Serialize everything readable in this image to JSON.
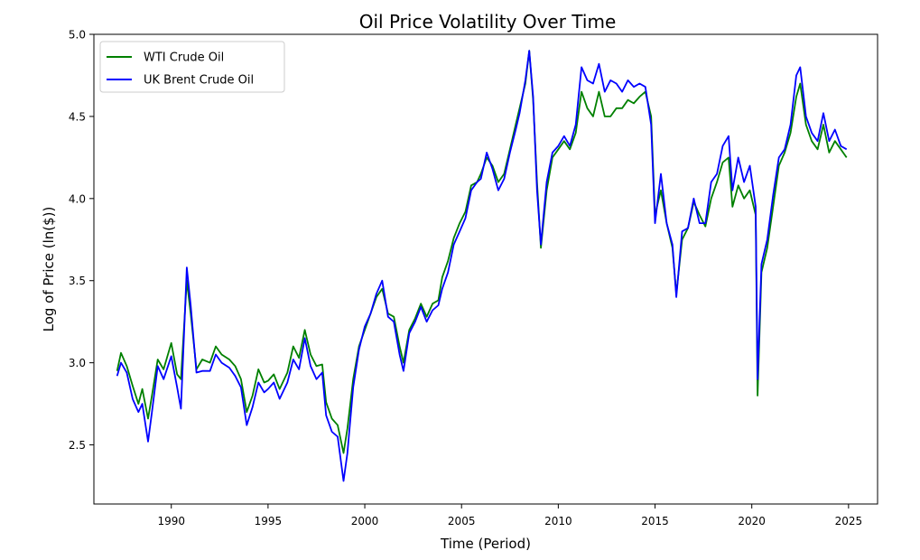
{
  "chart_data": {
    "type": "line",
    "title": "Oil Price Volatility Over Time",
    "xlabel": "Time (Period)",
    "ylabel": "Log of Price (ln($))",
    "xlim": [
      1986.0,
      2026.5
    ],
    "ylim": [
      2.14,
      5.0
    ],
    "x_ticks": [
      1990,
      1995,
      2000,
      2005,
      2010,
      2015,
      2020,
      2025
    ],
    "y_ticks": [
      2.5,
      3.0,
      3.5,
      4.0,
      4.5,
      5.0
    ],
    "x_tick_labels": [
      "1990",
      "1995",
      "2000",
      "2005",
      "2010",
      "2015",
      "2020",
      "2025"
    ],
    "y_tick_labels": [
      "2.5",
      "3.0",
      "3.5",
      "4.0",
      "4.5",
      "5.0"
    ],
    "grid": false,
    "legend_position": "top-left",
    "series": [
      {
        "name": "WTI Crude Oil",
        "color": "#008000",
        "points": [
          [
            1987.2,
            2.95
          ],
          [
            1987.4,
            3.06
          ],
          [
            1987.7,
            2.98
          ],
          [
            1988.0,
            2.86
          ],
          [
            1988.3,
            2.75
          ],
          [
            1988.5,
            2.84
          ],
          [
            1988.8,
            2.66
          ],
          [
            1989.0,
            2.8
          ],
          [
            1989.3,
            3.02
          ],
          [
            1989.6,
            2.96
          ],
          [
            1990.0,
            3.12
          ],
          [
            1990.3,
            2.93
          ],
          [
            1990.5,
            2.9
          ],
          [
            1990.8,
            3.5
          ],
          [
            1991.0,
            3.3
          ],
          [
            1991.3,
            2.96
          ],
          [
            1991.6,
            3.02
          ],
          [
            1992.0,
            3.0
          ],
          [
            1992.3,
            3.1
          ],
          [
            1992.6,
            3.05
          ],
          [
            1993.0,
            3.02
          ],
          [
            1993.3,
            2.98
          ],
          [
            1993.6,
            2.9
          ],
          [
            1993.9,
            2.7
          ],
          [
            1994.2,
            2.8
          ],
          [
            1994.5,
            2.96
          ],
          [
            1994.8,
            2.88
          ],
          [
            1995.0,
            2.89
          ],
          [
            1995.3,
            2.93
          ],
          [
            1995.6,
            2.84
          ],
          [
            1996.0,
            2.94
          ],
          [
            1996.3,
            3.1
          ],
          [
            1996.6,
            3.03
          ],
          [
            1996.9,
            3.2
          ],
          [
            1997.2,
            3.05
          ],
          [
            1997.5,
            2.98
          ],
          [
            1997.8,
            2.99
          ],
          [
            1998.0,
            2.76
          ],
          [
            1998.3,
            2.66
          ],
          [
            1998.6,
            2.62
          ],
          [
            1998.9,
            2.45
          ],
          [
            1999.1,
            2.6
          ],
          [
            1999.4,
            2.9
          ],
          [
            1999.7,
            3.1
          ],
          [
            2000.0,
            3.2
          ],
          [
            2000.3,
            3.3
          ],
          [
            2000.6,
            3.4
          ],
          [
            2000.9,
            3.45
          ],
          [
            2001.2,
            3.3
          ],
          [
            2001.5,
            3.28
          ],
          [
            2001.8,
            3.1
          ],
          [
            2002.0,
            3.0
          ],
          [
            2002.3,
            3.2
          ],
          [
            2002.6,
            3.27
          ],
          [
            2002.9,
            3.36
          ],
          [
            2003.2,
            3.28
          ],
          [
            2003.5,
            3.36
          ],
          [
            2003.8,
            3.38
          ],
          [
            2004.0,
            3.52
          ],
          [
            2004.3,
            3.62
          ],
          [
            2004.6,
            3.76
          ],
          [
            2004.9,
            3.85
          ],
          [
            2005.2,
            3.92
          ],
          [
            2005.5,
            4.08
          ],
          [
            2005.8,
            4.1
          ],
          [
            2006.0,
            4.15
          ],
          [
            2006.3,
            4.25
          ],
          [
            2006.6,
            4.2
          ],
          [
            2006.9,
            4.1
          ],
          [
            2007.2,
            4.15
          ],
          [
            2007.5,
            4.3
          ],
          [
            2007.8,
            4.45
          ],
          [
            2008.0,
            4.55
          ],
          [
            2008.3,
            4.7
          ],
          [
            2008.5,
            4.9
          ],
          [
            2008.7,
            4.6
          ],
          [
            2008.9,
            4.1
          ],
          [
            2009.1,
            3.7
          ],
          [
            2009.4,
            4.05
          ],
          [
            2009.7,
            4.25
          ],
          [
            2010.0,
            4.3
          ],
          [
            2010.3,
            4.35
          ],
          [
            2010.6,
            4.3
          ],
          [
            2010.9,
            4.4
          ],
          [
            2011.2,
            4.65
          ],
          [
            2011.5,
            4.55
          ],
          [
            2011.8,
            4.5
          ],
          [
            2012.1,
            4.65
          ],
          [
            2012.4,
            4.5
          ],
          [
            2012.7,
            4.5
          ],
          [
            2013.0,
            4.55
          ],
          [
            2013.3,
            4.55
          ],
          [
            2013.6,
            4.6
          ],
          [
            2013.9,
            4.58
          ],
          [
            2014.2,
            4.62
          ],
          [
            2014.5,
            4.65
          ],
          [
            2014.8,
            4.5
          ],
          [
            2015.0,
            3.9
          ],
          [
            2015.3,
            4.05
          ],
          [
            2015.6,
            3.85
          ],
          [
            2015.9,
            3.7
          ],
          [
            2016.1,
            3.42
          ],
          [
            2016.4,
            3.75
          ],
          [
            2016.7,
            3.82
          ],
          [
            2017.0,
            3.98
          ],
          [
            2017.3,
            3.9
          ],
          [
            2017.6,
            3.83
          ],
          [
            2017.9,
            4.0
          ],
          [
            2018.2,
            4.1
          ],
          [
            2018.5,
            4.22
          ],
          [
            2018.8,
            4.25
          ],
          [
            2019.0,
            3.95
          ],
          [
            2019.3,
            4.08
          ],
          [
            2019.6,
            4.0
          ],
          [
            2019.9,
            4.05
          ],
          [
            2020.2,
            3.9
          ],
          [
            2020.3,
            2.8
          ],
          [
            2020.5,
            3.55
          ],
          [
            2020.8,
            3.7
          ],
          [
            2021.1,
            3.95
          ],
          [
            2021.4,
            4.2
          ],
          [
            2021.7,
            4.28
          ],
          [
            2022.0,
            4.4
          ],
          [
            2022.3,
            4.62
          ],
          [
            2022.5,
            4.7
          ],
          [
            2022.8,
            4.45
          ],
          [
            2023.1,
            4.35
          ],
          [
            2023.4,
            4.3
          ],
          [
            2023.7,
            4.45
          ],
          [
            2024.0,
            4.28
          ],
          [
            2024.3,
            4.35
          ],
          [
            2024.6,
            4.3
          ],
          [
            2024.9,
            4.25
          ]
        ]
      },
      {
        "name": "UK Brent Crude Oil",
        "color": "#0000ff",
        "points": [
          [
            1987.2,
            2.92
          ],
          [
            1987.4,
            3.0
          ],
          [
            1987.7,
            2.94
          ],
          [
            1988.0,
            2.78
          ],
          [
            1988.3,
            2.7
          ],
          [
            1988.5,
            2.75
          ],
          [
            1988.8,
            2.52
          ],
          [
            1989.0,
            2.7
          ],
          [
            1989.3,
            2.98
          ],
          [
            1989.6,
            2.9
          ],
          [
            1990.0,
            3.04
          ],
          [
            1990.3,
            2.85
          ],
          [
            1990.5,
            2.72
          ],
          [
            1990.8,
            3.58
          ],
          [
            1991.0,
            3.35
          ],
          [
            1991.3,
            2.94
          ],
          [
            1991.6,
            2.95
          ],
          [
            1992.0,
            2.95
          ],
          [
            1992.3,
            3.05
          ],
          [
            1992.6,
            3.0
          ],
          [
            1993.0,
            2.97
          ],
          [
            1993.3,
            2.92
          ],
          [
            1993.6,
            2.85
          ],
          [
            1993.9,
            2.62
          ],
          [
            1994.2,
            2.73
          ],
          [
            1994.5,
            2.88
          ],
          [
            1994.8,
            2.82
          ],
          [
            1995.0,
            2.84
          ],
          [
            1995.3,
            2.88
          ],
          [
            1995.6,
            2.78
          ],
          [
            1996.0,
            2.88
          ],
          [
            1996.3,
            3.02
          ],
          [
            1996.6,
            2.96
          ],
          [
            1996.9,
            3.15
          ],
          [
            1997.2,
            2.98
          ],
          [
            1997.5,
            2.9
          ],
          [
            1997.8,
            2.94
          ],
          [
            1998.0,
            2.68
          ],
          [
            1998.3,
            2.58
          ],
          [
            1998.6,
            2.55
          ],
          [
            1998.9,
            2.28
          ],
          [
            1999.1,
            2.45
          ],
          [
            1999.4,
            2.85
          ],
          [
            1999.7,
            3.08
          ],
          [
            2000.0,
            3.22
          ],
          [
            2000.3,
            3.3
          ],
          [
            2000.6,
            3.42
          ],
          [
            2000.9,
            3.5
          ],
          [
            2001.2,
            3.28
          ],
          [
            2001.5,
            3.25
          ],
          [
            2001.8,
            3.05
          ],
          [
            2002.0,
            2.95
          ],
          [
            2002.3,
            3.18
          ],
          [
            2002.6,
            3.25
          ],
          [
            2002.9,
            3.34
          ],
          [
            2003.2,
            3.25
          ],
          [
            2003.5,
            3.32
          ],
          [
            2003.8,
            3.35
          ],
          [
            2004.0,
            3.45
          ],
          [
            2004.3,
            3.55
          ],
          [
            2004.6,
            3.72
          ],
          [
            2004.9,
            3.8
          ],
          [
            2005.2,
            3.88
          ],
          [
            2005.5,
            4.05
          ],
          [
            2005.8,
            4.1
          ],
          [
            2006.0,
            4.12
          ],
          [
            2006.3,
            4.28
          ],
          [
            2006.6,
            4.18
          ],
          [
            2006.9,
            4.05
          ],
          [
            2007.2,
            4.12
          ],
          [
            2007.5,
            4.28
          ],
          [
            2007.8,
            4.42
          ],
          [
            2008.0,
            4.52
          ],
          [
            2008.3,
            4.72
          ],
          [
            2008.5,
            4.9
          ],
          [
            2008.7,
            4.62
          ],
          [
            2008.9,
            4.05
          ],
          [
            2009.1,
            3.72
          ],
          [
            2009.4,
            4.1
          ],
          [
            2009.7,
            4.28
          ],
          [
            2010.0,
            4.32
          ],
          [
            2010.3,
            4.38
          ],
          [
            2010.6,
            4.32
          ],
          [
            2010.9,
            4.45
          ],
          [
            2011.2,
            4.8
          ],
          [
            2011.5,
            4.72
          ],
          [
            2011.8,
            4.7
          ],
          [
            2012.1,
            4.82
          ],
          [
            2012.4,
            4.65
          ],
          [
            2012.7,
            4.72
          ],
          [
            2013.0,
            4.7
          ],
          [
            2013.3,
            4.65
          ],
          [
            2013.6,
            4.72
          ],
          [
            2013.9,
            4.68
          ],
          [
            2014.2,
            4.7
          ],
          [
            2014.5,
            4.68
          ],
          [
            2014.8,
            4.45
          ],
          [
            2015.0,
            3.85
          ],
          [
            2015.3,
            4.15
          ],
          [
            2015.6,
            3.85
          ],
          [
            2015.9,
            3.72
          ],
          [
            2016.1,
            3.4
          ],
          [
            2016.4,
            3.8
          ],
          [
            2016.7,
            3.82
          ],
          [
            2017.0,
            4.0
          ],
          [
            2017.3,
            3.85
          ],
          [
            2017.6,
            3.85
          ],
          [
            2017.9,
            4.1
          ],
          [
            2018.2,
            4.15
          ],
          [
            2018.5,
            4.32
          ],
          [
            2018.8,
            4.38
          ],
          [
            2019.0,
            4.05
          ],
          [
            2019.3,
            4.25
          ],
          [
            2019.6,
            4.1
          ],
          [
            2019.9,
            4.2
          ],
          [
            2020.2,
            3.95
          ],
          [
            2020.3,
            2.9
          ],
          [
            2020.5,
            3.6
          ],
          [
            2020.8,
            3.75
          ],
          [
            2021.1,
            4.02
          ],
          [
            2021.4,
            4.25
          ],
          [
            2021.7,
            4.3
          ],
          [
            2022.0,
            4.45
          ],
          [
            2022.3,
            4.75
          ],
          [
            2022.5,
            4.8
          ],
          [
            2022.8,
            4.5
          ],
          [
            2023.1,
            4.4
          ],
          [
            2023.4,
            4.35
          ],
          [
            2023.7,
            4.52
          ],
          [
            2024.0,
            4.35
          ],
          [
            2024.3,
            4.42
          ],
          [
            2024.6,
            4.32
          ],
          [
            2024.9,
            4.3
          ]
        ]
      }
    ]
  }
}
